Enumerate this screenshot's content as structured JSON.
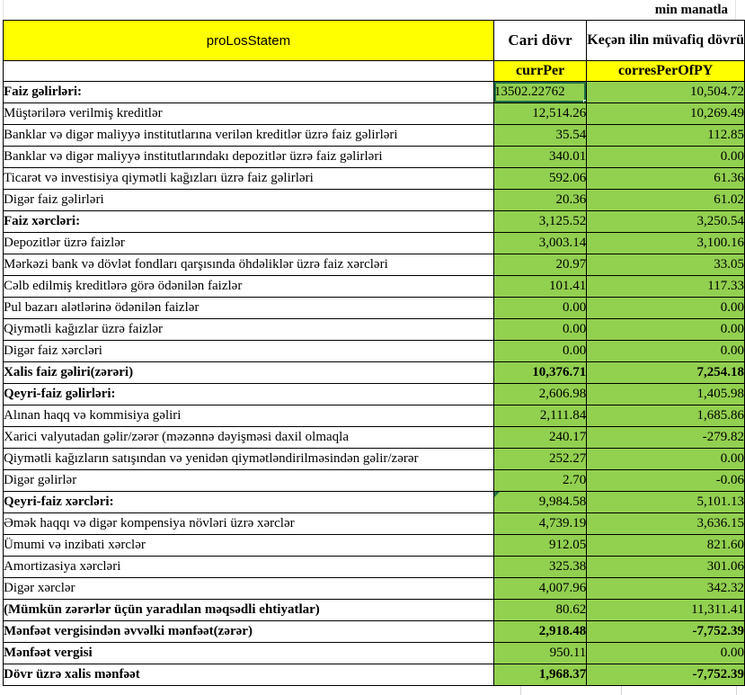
{
  "unit_note": "min manatla",
  "header": {
    "title": "proLosStatem",
    "col_current": "Cari dövr",
    "col_prior": "Keçən ilin müvafiq dövrü",
    "code_current": "currPer",
    "code_prior": "corresPerOfPY"
  },
  "colors": {
    "header_yellow": "#FFFF00",
    "value_green": "#92D050",
    "selection_border": "#1F7245",
    "grid_line": "#000000",
    "faint_grid": "#D4D4D4"
  },
  "selected_cell": {
    "row_index": 0,
    "column": "currPer",
    "value": "13502.22762"
  },
  "rows": [
    {
      "label": "Faiz gəlirləri:",
      "v1": "13502.22762",
      "v2": "10,504.72",
      "label_bold": true,
      "values_bold": false,
      "selected": true,
      "error_marker": false
    },
    {
      "label": "Müştərilərə verilmiş kreditlər",
      "v1": "12,514.26",
      "v2": "10,269.49",
      "label_bold": false,
      "values_bold": false,
      "selected": false,
      "error_marker": false
    },
    {
      "label": "Banklar və digər maliyyə institutlarına verilən kreditlər üzrə faiz gəlirləri",
      "v1": "35.54",
      "v2": "112.85",
      "label_bold": false,
      "values_bold": false,
      "selected": false,
      "error_marker": false
    },
    {
      "label": "Banklar və digər maliyyə institutlarındakı depozitlər üzrə faiz gəlirləri",
      "v1": "340.01",
      "v2": "0.00",
      "label_bold": false,
      "values_bold": false,
      "selected": false,
      "error_marker": false
    },
    {
      "label": "Ticarət və investisiya qiymətli kağızları üzrə faiz gəlirləri",
      "v1": "592.06",
      "v2": "61.36",
      "label_bold": false,
      "values_bold": false,
      "selected": false,
      "error_marker": false
    },
    {
      "label": "Digər faiz gəlirləri",
      "v1": "20.36",
      "v2": "61.02",
      "label_bold": false,
      "values_bold": false,
      "selected": false,
      "error_marker": false
    },
    {
      "label": "Faiz xərcləri:",
      "v1": "3,125.52",
      "v2": "3,250.54",
      "label_bold": true,
      "values_bold": false,
      "selected": false,
      "error_marker": false
    },
    {
      "label": "Depozitlər üzrə faizlər",
      "v1": "3,003.14",
      "v2": "3,100.16",
      "label_bold": false,
      "values_bold": false,
      "selected": false,
      "error_marker": false
    },
    {
      "label": "Mərkəzi bank və dövlət fondları qarşısında öhdəliklər üzrə faiz xərcləri",
      "v1": "20.97",
      "v2": "33.05",
      "label_bold": false,
      "values_bold": false,
      "selected": false,
      "error_marker": false
    },
    {
      "label": "Cəlb edilmiş kreditlərə görə ödənilən faizlər",
      "v1": "101.41",
      "v2": "117.33",
      "label_bold": false,
      "values_bold": false,
      "selected": false,
      "error_marker": false
    },
    {
      "label": "Pul bazarı alətlərinə ödənilən faizlər",
      "v1": "0.00",
      "v2": "0.00",
      "label_bold": false,
      "values_bold": false,
      "selected": false,
      "error_marker": false
    },
    {
      "label": "Qiymətli kağızlar üzrə faizlər",
      "v1": "0.00",
      "v2": "0.00",
      "label_bold": false,
      "values_bold": false,
      "selected": false,
      "error_marker": false
    },
    {
      "label": "Digər faiz xərcləri",
      "v1": "0.00",
      "v2": "0.00",
      "label_bold": false,
      "values_bold": false,
      "selected": false,
      "error_marker": false
    },
    {
      "label": "Xalis faiz gəliri(zərəri)",
      "v1": "10,376.71",
      "v2": "7,254.18",
      "label_bold": true,
      "values_bold": true,
      "selected": false,
      "error_marker": false
    },
    {
      "label": "Qeyri-faiz gəlirləri:",
      "v1": "2,606.98",
      "v2": "1,405.98",
      "label_bold": true,
      "values_bold": false,
      "selected": false,
      "error_marker": false
    },
    {
      "label": "Alınan haqq və kommisiya gəliri",
      "v1": "2,111.84",
      "v2": "1,685.86",
      "label_bold": false,
      "values_bold": false,
      "selected": false,
      "error_marker": false
    },
    {
      "label": "Xarici valyutadan gəlir/zərər (məzənnə dəyişməsi daxil olmaqla",
      "v1": "240.17",
      "v2": "-279.82",
      "label_bold": false,
      "values_bold": false,
      "selected": false,
      "error_marker": false
    },
    {
      "label": "Qiymətli kağızların satışından və yenidən qiymətləndirilməsindən gəlir/zərər",
      "v1": "252.27",
      "v2": "0.00",
      "label_bold": false,
      "values_bold": false,
      "selected": false,
      "error_marker": false
    },
    {
      "label": "Digər gəlirlər",
      "v1": "2.70",
      "v2": "-0.06",
      "label_bold": false,
      "values_bold": false,
      "selected": false,
      "error_marker": false
    },
    {
      "label": "Qeyri-faiz xərcləri:",
      "v1": "9,984.58",
      "v2": "5,101.13",
      "label_bold": true,
      "values_bold": false,
      "selected": false,
      "error_marker": true
    },
    {
      "label": "Əmək haqqı və digər kompensiya növləri üzrə xərclər",
      "v1": "4,739.19",
      "v2": "3,636.15",
      "label_bold": false,
      "values_bold": false,
      "selected": false,
      "error_marker": false
    },
    {
      "label": "Ümumi və inzibati xərclər",
      "v1": "912.05",
      "v2": "821.60",
      "label_bold": false,
      "values_bold": false,
      "selected": false,
      "error_marker": false
    },
    {
      "label": "Amortizasiya xərcləri",
      "v1": "325.38",
      "v2": "301.06",
      "label_bold": false,
      "values_bold": false,
      "selected": false,
      "error_marker": false
    },
    {
      "label": "Digər xərclər",
      "v1": "4,007.96",
      "v2": "342.32",
      "label_bold": false,
      "values_bold": false,
      "selected": false,
      "error_marker": false
    },
    {
      "label": "(Mümkün zərərlər üçün yaradılan məqsədli ehtiyatlar)",
      "v1": "80.62",
      "v2": "11,311.41",
      "label_bold": true,
      "values_bold": false,
      "selected": false,
      "error_marker": false
    },
    {
      "label": "Mənfəət vergisindən əvvəlki mənfəət(zərər)",
      "v1": "2,918.48",
      "v2": "-7,752.39",
      "label_bold": true,
      "values_bold": true,
      "selected": false,
      "error_marker": false
    },
    {
      "label": "Mənfəət vergisi",
      "v1": "950.11",
      "v2": "0.00",
      "label_bold": true,
      "values_bold": false,
      "selected": false,
      "error_marker": false
    },
    {
      "label": "Dövr üzrə xalis mənfəət",
      "v1": "1,968.37",
      "v2": "-7,752.39",
      "label_bold": true,
      "values_bold": true,
      "selected": false,
      "error_marker": false
    }
  ]
}
